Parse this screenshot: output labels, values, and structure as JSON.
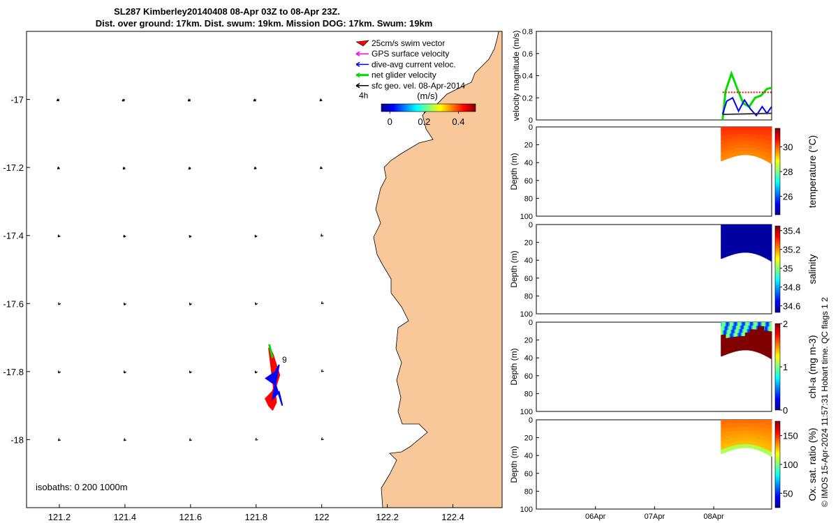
{
  "title": {
    "line1": "SL287 Kimberley20140408 08-Apr 03Z to 08-Apr 23Z.",
    "line2": "Dist. over ground: 17km. Dist. swum: 19km. Mission DOG: 17km. Swum: 19km"
  },
  "chart_data": [
    {
      "type": "scatter",
      "name_id": "glider-track-map",
      "xlim": [
        121.1,
        122.55
      ],
      "ylim": [
        -18.2,
        -16.8
      ],
      "x_ticks": [
        "121.2",
        "121.4",
        "121.6",
        "121.8",
        "122",
        "122.2",
        "122.4"
      ],
      "x_tick_values": [
        121.2,
        121.4,
        121.6,
        121.8,
        122.0,
        122.2,
        122.4
      ],
      "y_ticks": [
        "-17",
        "-17.2",
        "-17.4",
        "-17.6",
        "-17.8",
        "-18"
      ],
      "y_tick_values": [
        -17.0,
        -17.2,
        -17.4,
        -17.6,
        -17.8,
        -18.0
      ],
      "legend": [
        {
          "label": "25cm/s swim vector",
          "color": "#ff0000"
        },
        {
          "label": "GPS surface velocity",
          "color": "#ff00ff"
        },
        {
          "label": "dive-avg current veloc.",
          "color": "#0000ff"
        },
        {
          "label": "net glider velocity",
          "color": "#00dd00"
        },
        {
          "label": "sfc geo. vel. 08-Apr-2014",
          "color": "#000000"
        }
      ],
      "legend_extra": "4h",
      "colorbar": {
        "label": "(m/s)",
        "ticks": [
          "0",
          "0.2",
          "0.4"
        ],
        "tick_values": [
          0,
          0.2,
          0.4
        ],
        "range": [
          -0.05,
          0.5
        ]
      },
      "annotation": "9",
      "isobaths_label": "isobaths: 0   200  1000m",
      "land_color": "#f9c89a",
      "geo_vectors": {
        "lon": [
          121.2,
          121.4,
          121.6,
          121.8,
          122.0
        ],
        "lat": [
          -17.0,
          -17.2,
          -17.4,
          -17.6,
          -17.8,
          -18.0
        ],
        "u": [
          [
            -0.02,
            -0.022,
            -0.02,
            -0.02,
            -0.015
          ],
          [
            -0.015,
            -0.015,
            -0.015,
            -0.015,
            -0.012
          ],
          [
            -0.01,
            -0.01,
            -0.008,
            -0.008,
            -0.006
          ],
          [
            -0.006,
            -0.006,
            -0.006,
            -0.005,
            -0.002
          ],
          [
            -0.006,
            -0.006,
            -0.006,
            -0.006,
            -0.002
          ],
          [
            -0.008,
            -0.008,
            -0.008,
            -0.005,
            -0.002
          ]
        ],
        "v": [
          [
            -0.01,
            -0.012,
            -0.012,
            -0.012,
            -0.012
          ],
          [
            -0.012,
            -0.014,
            -0.014,
            -0.012,
            -0.01
          ],
          [
            -0.012,
            -0.014,
            -0.016,
            -0.014,
            -0.006
          ],
          [
            -0.01,
            -0.012,
            -0.012,
            -0.01,
            -0.002
          ],
          [
            -0.012,
            -0.012,
            -0.012,
            -0.012,
            -0.002
          ],
          [
            -0.008,
            -0.008,
            -0.008,
            -0.004,
            -0.002
          ]
        ]
      },
      "track": {
        "red_lon": [
          121.84,
          121.85,
          121.86,
          121.87,
          121.86,
          121.85,
          121.83,
          121.84,
          121.85,
          121.86
        ],
        "red_lat": [
          -17.73,
          -17.75,
          -17.78,
          -17.81,
          -17.84,
          -17.86,
          -17.88,
          -17.9,
          -17.91,
          -17.89
        ],
        "blue_lon": [
          121.87,
          121.86,
          121.83,
          121.86,
          121.88,
          121.87,
          121.85
        ],
        "blue_lat": [
          -17.78,
          -17.8,
          -17.82,
          -17.84,
          -17.9,
          -17.86,
          -17.88
        ],
        "green_lon": [
          121.84,
          121.845,
          121.85
        ],
        "green_lat": [
          -17.72,
          -17.74,
          -17.76
        ]
      }
    },
    {
      "type": "line",
      "name_id": "velocity-panel",
      "ylabel": "velocity magnitude (m/s)",
      "ylim": [
        0,
        0.8
      ],
      "y_ticks": [
        "0",
        "0.2",
        "0.4",
        "0.6",
        "0.8"
      ],
      "y_tick_values": [
        0,
        0.2,
        0.4,
        0.6,
        0.8
      ],
      "xlim": [
        5.0,
        8.98
      ],
      "series": [
        {
          "color": "#00dd00",
          "x": [
            8.15,
            8.2,
            8.3,
            8.4,
            8.5,
            8.6,
            8.7,
            8.8,
            8.9,
            8.98
          ],
          "y": [
            0.0,
            0.26,
            0.42,
            0.28,
            0.15,
            0.12,
            0.2,
            0.22,
            0.28,
            0.29
          ]
        },
        {
          "color": "#0000ff",
          "x": [
            8.15,
            8.22,
            8.32,
            8.42,
            8.52,
            8.62,
            8.72,
            8.82,
            8.9,
            8.98
          ],
          "y": [
            0.05,
            0.17,
            0.2,
            0.08,
            0.18,
            0.1,
            0.04,
            0.12,
            0.06,
            0.12
          ]
        },
        {
          "color": "#ff0000",
          "dashed": true,
          "x": [
            8.15,
            8.98
          ],
          "y": [
            0.25,
            0.25
          ]
        },
        {
          "color": "#333333",
          "x": [
            8.15,
            8.98
          ],
          "y": [
            0.05,
            0.06
          ]
        }
      ]
    },
    {
      "type": "heatmap",
      "name_id": "temperature-panel",
      "ylabel": "Depth (m)",
      "colorbar_label": "temperature (°C)",
      "colorbar_ticks": [
        "26",
        "28",
        "30"
      ],
      "colorbar_tick_values": [
        26,
        28,
        30
      ],
      "crange": [
        24.5,
        31.5
      ],
      "ylim": [
        0,
        100
      ],
      "y_ticks": [
        "0",
        "20",
        "40",
        "60",
        "80",
        "100"
      ],
      "y_tick_values": [
        0,
        20,
        40,
        60,
        80,
        100
      ],
      "value_surface": 30.3,
      "value_bottom": 29.6
    },
    {
      "type": "heatmap",
      "name_id": "salinity-panel",
      "ylabel": "Depth (m)",
      "colorbar_label": "salinity",
      "colorbar_ticks": [
        "34.6",
        "34.8",
        "35",
        "35.2",
        "35.4"
      ],
      "colorbar_tick_values": [
        34.6,
        34.8,
        35.0,
        35.2,
        35.4
      ],
      "crange": [
        34.53,
        35.45
      ],
      "ylim": [
        0,
        100
      ],
      "y_ticks": [
        "0",
        "20",
        "40",
        "60",
        "80",
        "100"
      ],
      "y_tick_values": [
        0,
        20,
        40,
        60,
        80,
        100
      ],
      "value_surface": 34.55,
      "value_bottom": 34.55
    },
    {
      "type": "heatmap",
      "name_id": "chla-panel",
      "ylabel": "Depth (m)",
      "colorbar_label": "chl-a (mg m-3)",
      "colorbar_ticks": [
        "0",
        "1",
        "2"
      ],
      "colorbar_tick_values": [
        0,
        1,
        2
      ],
      "crange": [
        0,
        2
      ],
      "ylim": [
        0,
        100
      ],
      "y_ticks": [
        "0",
        "20",
        "40",
        "60",
        "80",
        "100"
      ],
      "y_tick_values": [
        0,
        20,
        40,
        60,
        80,
        100
      ],
      "value_surface": 0.9,
      "value_bottom": 2.0
    },
    {
      "type": "heatmap",
      "name_id": "oxygen-panel",
      "ylabel": "Depth (m)",
      "colorbar_label": "Ox. sat. ratio (%)",
      "colorbar_ticks": [
        "50",
        "100",
        "150"
      ],
      "colorbar_tick_values": [
        50,
        100,
        150
      ],
      "crange": [
        25,
        175
      ],
      "ylim": [
        0,
        100
      ],
      "y_ticks": [
        "0",
        "20",
        "40",
        "60",
        "80",
        "100"
      ],
      "y_tick_values": [
        0,
        20,
        40,
        60,
        80,
        100
      ],
      "x_ticks": [
        "06Apr",
        "07Apr",
        "08Apr"
      ],
      "x_tick_values": [
        6,
        7,
        8
      ],
      "xlim": [
        5.0,
        8.98
      ],
      "value_surface": 140,
      "value_bottom": 125
    }
  ],
  "footer": "© IMOS 15-Apr-2024 11:57:31 Hobart time. QC flags 1  2"
}
